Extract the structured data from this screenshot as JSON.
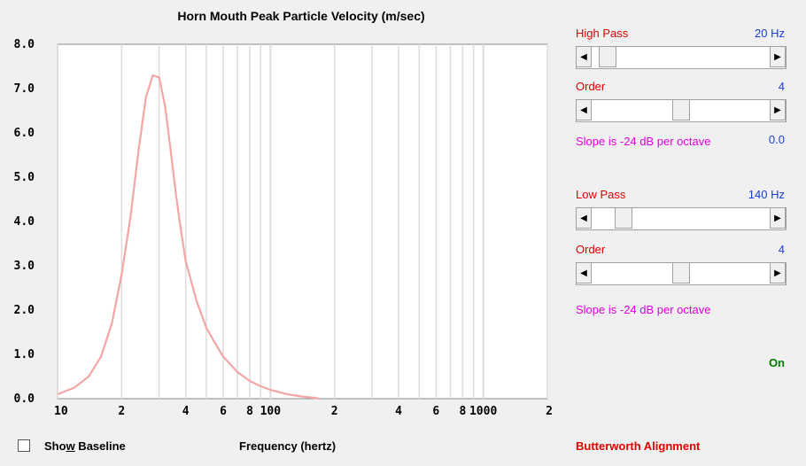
{
  "chart_data": {
    "type": "line",
    "title": "Horn Mouth Peak Particle Velocity (m/sec)",
    "xlabel": "Frequency (hertz)",
    "ylabel": "",
    "xscale": "log",
    "xlim": [
      10,
      2000
    ],
    "ylim": [
      0,
      8
    ],
    "yticks": [
      "0.0",
      "1.0",
      "2.0",
      "3.0",
      "4.0",
      "5.0",
      "6.0",
      "7.0",
      "8.0"
    ],
    "xtick_labels": [
      {
        "v": 10,
        "label": "10"
      },
      {
        "v": 20,
        "label": "2"
      },
      {
        "v": 40,
        "label": "4"
      },
      {
        "v": 60,
        "label": "6"
      },
      {
        "v": 80,
        "label": "8"
      },
      {
        "v": 100,
        "label": "100"
      },
      {
        "v": 200,
        "label": "2"
      },
      {
        "v": 400,
        "label": "4"
      },
      {
        "v": 600,
        "label": "6"
      },
      {
        "v": 800,
        "label": "8"
      },
      {
        "v": 1000,
        "label": "1000"
      },
      {
        "v": 2000,
        "label": "2"
      }
    ],
    "grid": true,
    "series": [
      {
        "color": "#f4a6a6",
        "x": [
          10,
          12,
          14,
          16,
          18,
          20,
          22,
          24,
          26,
          28,
          30,
          32,
          34,
          36,
          38,
          40,
          45,
          50,
          55,
          60,
          70,
          80,
          90,
          100,
          120,
          140,
          160,
          170
        ],
        "y": [
          0.1,
          0.25,
          0.5,
          0.95,
          1.7,
          2.8,
          4.1,
          5.6,
          6.8,
          7.3,
          7.25,
          6.6,
          5.6,
          4.6,
          3.8,
          3.1,
          2.2,
          1.6,
          1.25,
          0.95,
          0.6,
          0.4,
          0.28,
          0.2,
          0.1,
          0.05,
          0.02,
          0.0
        ]
      }
    ]
  },
  "highpass": {
    "label": "High Pass",
    "value": "20 Hz",
    "thumb_pos": 0.04
  },
  "hp_order": {
    "label": "Order",
    "value": "4",
    "thumb_pos": 0.5
  },
  "hp_slope": {
    "text": "Slope is -24 dB per octave",
    "value": "0.0"
  },
  "lowpass": {
    "label": "Low Pass",
    "value": "140 Hz",
    "thumb_pos": 0.14
  },
  "lp_order": {
    "label": "Order",
    "value": "4",
    "thumb_pos": 0.5
  },
  "lp_slope": {
    "text": "Slope is -24 dB per octave"
  },
  "status": "On",
  "alignment": "Butterworth Alignment",
  "baseline": {
    "label_pre": "Sho",
    "label_u": "w",
    "label_post": " Baseline",
    "checked": false
  },
  "icons": {
    "left": "arrow-left-icon",
    "right": "arrow-right-icon"
  }
}
